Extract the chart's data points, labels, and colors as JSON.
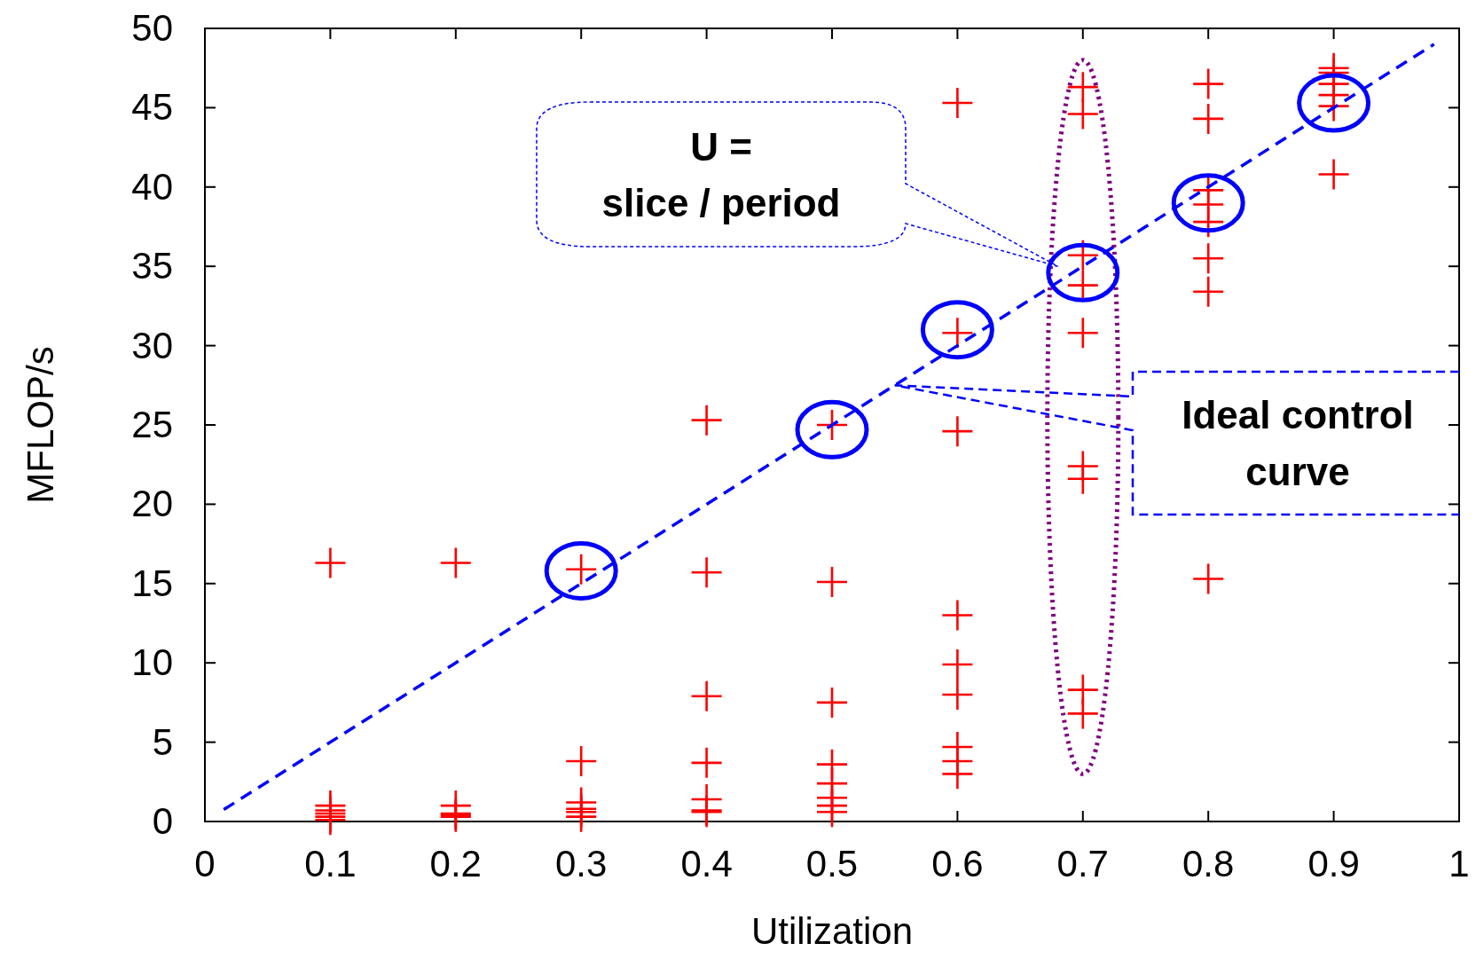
{
  "chart_data": {
    "type": "scatter",
    "xlabel": "Utilization",
    "ylabel": "MFLOP/s",
    "xlim": [
      0,
      1
    ],
    "ylim": [
      0,
      50
    ],
    "xticks": [
      0,
      0.1,
      0.2,
      0.3,
      0.4,
      0.5,
      0.6,
      0.7,
      0.8,
      0.9,
      1
    ],
    "yticks": [
      0,
      5,
      10,
      15,
      20,
      25,
      30,
      35,
      40,
      45,
      50
    ],
    "grid": false,
    "marker": "cross",
    "series": [
      {
        "color": "#ff0000",
        "x": [
          0.1,
          0.1,
          0.1,
          0.1,
          0.1,
          0.1,
          0.2,
          0.2,
          0.2,
          0.2,
          0.2,
          0.3,
          0.3,
          0.3,
          0.3,
          0.3,
          0.3,
          0.4,
          0.4,
          0.4,
          0.4,
          0.4,
          0.4,
          0.4,
          0.5,
          0.5,
          0.5,
          0.5,
          0.5,
          0.5,
          0.5,
          0.5,
          0.6,
          0.6,
          0.6,
          0.6,
          0.6,
          0.6,
          0.6,
          0.6,
          0.6,
          0.7,
          0.7,
          0.7,
          0.7,
          0.7,
          0.7,
          0.7,
          0.7,
          0.7,
          0.8,
          0.8,
          0.8,
          0.8,
          0.8,
          0.8,
          0.8,
          0.8,
          0.9,
          0.9,
          0.9,
          0.9,
          0.9,
          0.9
        ],
        "values": [
          16.3,
          1.0,
          0.7,
          0.5,
          0.3,
          0.1,
          16.3,
          1.0,
          0.5,
          0.4,
          0.3,
          15.9,
          3.8,
          1.2,
          0.8,
          0.6,
          0.3,
          25.3,
          15.7,
          7.9,
          3.7,
          1.4,
          0.7,
          0.6,
          25.0,
          15.1,
          7.5,
          3.6,
          2.4,
          1.5,
          1.0,
          0.6,
          45.3,
          30.8,
          24.6,
          13.0,
          9.9,
          8.0,
          4.7,
          3.8,
          3.0,
          46.3,
          44.6,
          35.7,
          33.8,
          30.8,
          22.4,
          21.6,
          8.3,
          6.8,
          46.5,
          44.3,
          39.8,
          38.9,
          37.8,
          35.5,
          33.4,
          15.3,
          47.5,
          47.2,
          46.5,
          45.8,
          45.1,
          40.8
        ]
      },
      {
        "color": "#0000ff",
        "type": "line",
        "line_style": "dashed",
        "marker": "none",
        "x": [
          0.015,
          0.98
        ],
        "values": [
          0.75,
          49
        ]
      }
    ],
    "annotations": [
      "U =\nslice / period",
      "Ideal control\ncurve"
    ]
  }
}
